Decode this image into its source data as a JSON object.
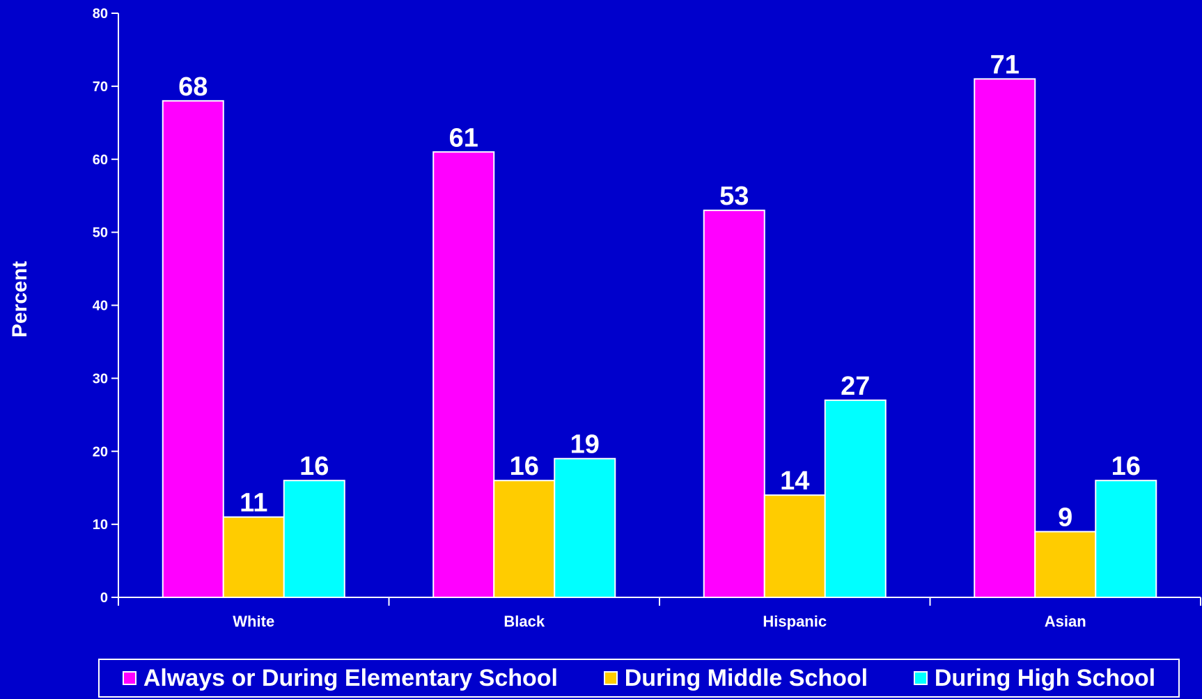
{
  "chart_data": {
    "type": "bar",
    "title": "",
    "xlabel": "",
    "ylabel": "Percent",
    "ylim": [
      0,
      80
    ],
    "yticks": [
      0,
      10,
      20,
      30,
      40,
      50,
      60,
      70,
      80
    ],
    "categories": [
      "White",
      "Black",
      "Hispanic",
      "Asian"
    ],
    "series": [
      {
        "name": "Always or During Elementary School",
        "color": "#FF00FF",
        "values": [
          68,
          61,
          53,
          71
        ]
      },
      {
        "name": "During Middle School",
        "color": "#FFCC00",
        "values": [
          11,
          16,
          14,
          9
        ]
      },
      {
        "name": "During High School",
        "color": "#00FFFF",
        "values": [
          16,
          19,
          27,
          16
        ]
      }
    ],
    "data_labels": true,
    "grid": false,
    "legend_position": "bottom"
  },
  "colors": {
    "background": "#0000CC",
    "text": "#FFFFFF",
    "axis": "#FFFFFF"
  }
}
